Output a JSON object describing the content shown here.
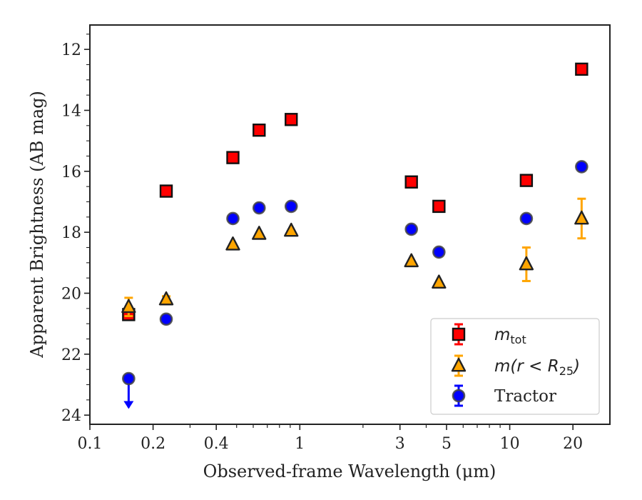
{
  "chart_data": {
    "type": "scatter",
    "xscale": "log",
    "xlim": [
      0.1,
      30
    ],
    "ylim": [
      24.3,
      11.2
    ],
    "yinverted": true,
    "xlabel": "Observed-frame Wavelength (μm)",
    "ylabel": "Apparent Brightness (AB mag)",
    "xticks": [
      0.1,
      0.2,
      0.4,
      1,
      3,
      5,
      10,
      20
    ],
    "xtick_labels": [
      "0.1",
      "0.2",
      "0.4",
      "1",
      "3",
      "5",
      "10",
      "20"
    ],
    "yticks": [
      12,
      14,
      16,
      18,
      20,
      22,
      24
    ],
    "ytick_labels": [
      "12",
      "14",
      "16",
      "18",
      "20",
      "22",
      "24"
    ],
    "grid": false,
    "legend_position": "lower-right",
    "series": [
      {
        "name": "m_tot",
        "legend_label": "m",
        "legend_sub": "tot",
        "marker": "square",
        "color": "#ff0000",
        "errcolor": "#ff0000",
        "x": [
          0.153,
          0.231,
          0.48,
          0.64,
          0.91,
          3.4,
          4.6,
          12.0,
          22.0
        ],
        "y": [
          20.7,
          16.65,
          15.55,
          14.65,
          14.3,
          16.35,
          17.15,
          16.3,
          12.65
        ],
        "yerr": [
          0,
          0,
          0,
          0,
          0,
          0,
          0,
          0,
          0
        ]
      },
      {
        "name": "m(r < R_25)",
        "legend_label": "m(r < R",
        "legend_sub": "25",
        "legend_suffix": ")",
        "marker": "triangle",
        "color": "#ffa500",
        "errcolor": "#ffa500",
        "x": [
          0.153,
          0.231,
          0.48,
          0.64,
          0.91,
          3.4,
          4.6,
          12.0,
          22.0
        ],
        "y": [
          20.45,
          20.2,
          18.4,
          18.05,
          17.95,
          18.95,
          19.65,
          19.05,
          17.55
        ],
        "yerr": [
          0.3,
          0.1,
          0,
          0,
          0,
          0,
          0,
          0.55,
          0.65
        ]
      },
      {
        "name": "Tractor",
        "legend_label": "Tractor",
        "marker": "circle",
        "color": "#0000ff",
        "errcolor": "#0000ff",
        "x": [
          0.153,
          0.231,
          0.48,
          0.64,
          0.91,
          3.4,
          4.6,
          12.0,
          22.0
        ],
        "y": [
          22.8,
          20.85,
          17.55,
          17.2,
          17.15,
          17.9,
          18.65,
          17.55,
          15.85
        ],
        "yerr": [
          0,
          0,
          0,
          0,
          0,
          0,
          0,
          0,
          0
        ],
        "upper_limit": [
          true,
          false,
          false,
          false,
          false,
          false,
          false,
          false,
          false
        ]
      }
    ]
  }
}
